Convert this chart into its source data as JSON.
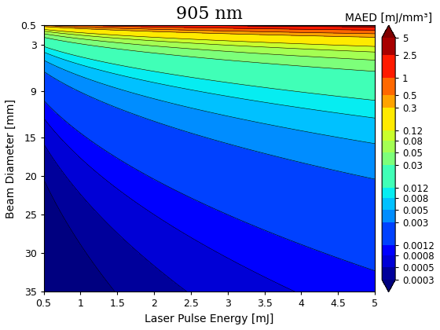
{
  "title": "905 nm",
  "xlabel": "Laser Pulse Energy [mJ]",
  "ylabel": "Beam Diameter [mm]",
  "colorbar_label": "MAED [mJ/mm³]",
  "x_min": 0.5,
  "x_max": 5.0,
  "y_min": 0.5,
  "y_max": 35.0,
  "x_ticks": [
    0.5,
    1,
    1.5,
    2,
    2.5,
    3,
    3.5,
    4,
    4.5,
    5
  ],
  "x_ticklabels": [
    "0.5",
    "1",
    "1.5",
    "2",
    "2.5",
    "3",
    "3.5",
    "4",
    "4.5",
    "5"
  ],
  "y_ticks": [
    0.5,
    3,
    9,
    15,
    20,
    25,
    30,
    35
  ],
  "y_ticklabels": [
    "0.5",
    "3",
    "9",
    "15",
    "20",
    "25",
    "30",
    "35"
  ],
  "colorbar_ticks": [
    5,
    2.5,
    1,
    0.5,
    0.3,
    0.12,
    0.08,
    0.05,
    0.03,
    0.012,
    0.008,
    0.005,
    0.003,
    0.0012,
    0.0008,
    0.0005,
    0.0003
  ],
  "colorbar_ticklabels": [
    "5",
    "2.5",
    "1",
    "0.5",
    "0.3",
    "0.12",
    "0.08",
    "0.05",
    "0.03",
    "0.012",
    "0.008",
    "0.005",
    "0.003",
    "0.0012",
    "0.0008",
    "0.0005",
    "0.0003"
  ],
  "contour_levels": [
    0.0003,
    0.0005,
    0.0008,
    0.0012,
    0.003,
    0.005,
    0.008,
    0.012,
    0.03,
    0.05,
    0.08,
    0.12,
    0.3,
    0.5,
    1.0,
    2.5,
    5.0
  ],
  "cmap": "jet",
  "formula_k": 0.196,
  "formula_exp_d": 3.0,
  "title_fontsize": 16,
  "label_fontsize": 10,
  "tick_fontsize": 9,
  "colorbar_tick_fontsize": 8.5
}
